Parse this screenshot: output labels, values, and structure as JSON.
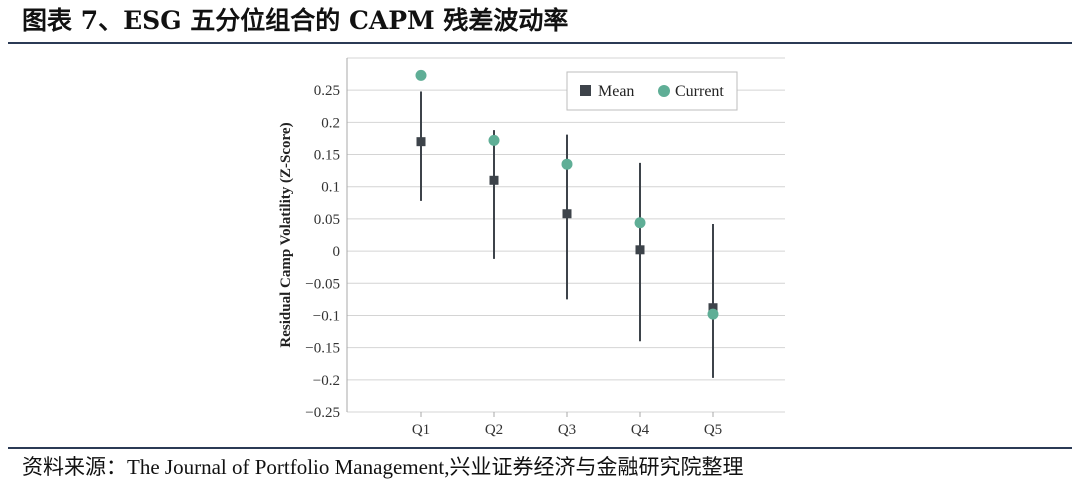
{
  "header": {
    "title": "图表 7、ESG 五分位组合的 CAPM 残差波动率"
  },
  "footer": {
    "source": "资料来源：The Journal of Portfolio Management,兴业证券经济与金融研究院整理"
  },
  "chart_data": {
    "type": "scatter",
    "categories": [
      "Q1",
      "Q2",
      "Q3",
      "Q4",
      "Q5"
    ],
    "ylabel": "Residual Camp Volatility (Z-Score)",
    "xlabel": "",
    "ylim": [
      -0.25,
      0.3
    ],
    "yticks": [
      0.25,
      0.2,
      0.15,
      0.1,
      0.05,
      0,
      -0.05,
      -0.1,
      -0.15,
      -0.2,
      -0.25
    ],
    "ytick_labels": [
      "0.25",
      "0.2",
      "0.15",
      "0.1",
      "0.05",
      "0",
      "−0.05",
      "−0.1",
      "−0.15",
      "−0.2",
      "−0.25"
    ],
    "grid": true,
    "legend_position": "top-right",
    "series": [
      {
        "name": "Mean",
        "marker": "square",
        "color": "#3d434a",
        "values": [
          0.17,
          0.11,
          0.058,
          0.002,
          -0.088
        ],
        "range_low": [
          0.078,
          -0.012,
          -0.075,
          -0.14,
          -0.197
        ],
        "range_high": [
          0.248,
          0.188,
          0.181,
          0.137,
          0.042
        ]
      },
      {
        "name": "Current",
        "marker": "circle",
        "color": "#5fae96",
        "values": [
          0.273,
          0.172,
          0.135,
          0.044,
          -0.098
        ]
      }
    ]
  }
}
